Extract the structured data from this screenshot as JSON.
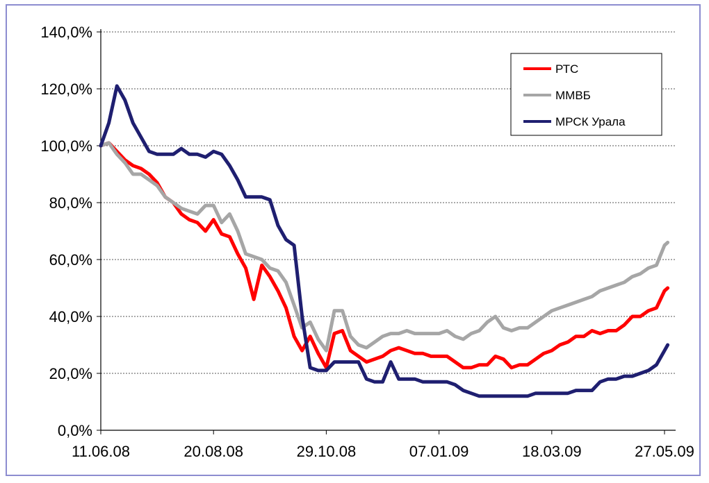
{
  "chart_data": {
    "type": "line",
    "title": "",
    "xlabel": "",
    "ylabel": "",
    "ylim": [
      0,
      140
    ],
    "y_ticks": [
      "0,0%",
      "20,0%",
      "40,0%",
      "60,0%",
      "80,0%",
      "100,0%",
      "120,0%",
      "140,0%"
    ],
    "x_ticks": [
      "11.06.08",
      "20.08.08",
      "29.10.08",
      "07.01.09",
      "18.03.09",
      "27.05.09"
    ],
    "grid": "horizontal dashed",
    "legend_position": "top-right",
    "x": [
      "11.06.08",
      "16.06.08",
      "21.06.08",
      "26.06.08",
      "01.07.08",
      "06.07.08",
      "11.07.08",
      "16.07.08",
      "21.07.08",
      "26.07.08",
      "31.07.08",
      "05.08.08",
      "10.08.08",
      "15.08.08",
      "20.08.08",
      "25.08.08",
      "30.08.08",
      "04.09.08",
      "09.09.08",
      "14.09.08",
      "19.09.08",
      "24.09.08",
      "29.09.08",
      "04.10.08",
      "09.10.08",
      "14.10.08",
      "19.10.08",
      "24.10.08",
      "29.10.08",
      "03.11.08",
      "08.11.08",
      "13.11.08",
      "18.11.08",
      "23.11.08",
      "28.11.08",
      "03.12.08",
      "08.12.08",
      "13.12.08",
      "18.12.08",
      "23.12.08",
      "28.12.08",
      "02.01.09",
      "07.01.09",
      "12.01.09",
      "17.01.09",
      "22.01.09",
      "27.01.09",
      "01.02.09",
      "06.02.09",
      "11.02.09",
      "16.02.09",
      "21.02.09",
      "26.02.09",
      "03.03.09",
      "08.03.09",
      "13.03.09",
      "18.03.09",
      "23.03.09",
      "28.03.09",
      "02.04.09",
      "07.04.09",
      "12.04.09",
      "17.04.09",
      "22.04.09",
      "27.04.09",
      "02.05.09",
      "07.05.09",
      "12.05.09",
      "17.05.09",
      "22.05.09",
      "27.05.09",
      "29.05.09"
    ],
    "series": [
      {
        "name": "РТС",
        "color": "#ff0000",
        "values": [
          100,
          101,
          98,
          95,
          93,
          92,
          90,
          87,
          82,
          80,
          76,
          74,
          73,
          70,
          74,
          69,
          68,
          62,
          57,
          46,
          58,
          54,
          49,
          43,
          33,
          28,
          33,
          27,
          22,
          34,
          35,
          28,
          26,
          24,
          25,
          26,
          28,
          29,
          28,
          27,
          27,
          26,
          26,
          26,
          24,
          22,
          22,
          23,
          23,
          26,
          25,
          22,
          23,
          23,
          25,
          27,
          28,
          30,
          31,
          33,
          33,
          35,
          34,
          35,
          35,
          37,
          40,
          40,
          42,
          43,
          49,
          50
        ]
      },
      {
        "name": "ММВБ",
        "color": "#a6a6a6",
        "values": [
          100,
          101,
          97,
          94,
          90,
          90,
          88,
          86,
          82,
          80,
          78,
          77,
          76,
          79,
          79,
          73,
          76,
          70,
          62,
          61,
          60,
          57,
          56,
          52,
          44,
          36,
          38,
          32,
          28,
          42,
          42,
          33,
          30,
          29,
          31,
          33,
          34,
          34,
          35,
          34,
          34,
          34,
          34,
          35,
          33,
          32,
          34,
          35,
          38,
          40,
          36,
          35,
          36,
          36,
          38,
          40,
          42,
          43,
          44,
          45,
          46,
          47,
          49,
          50,
          51,
          52,
          54,
          55,
          57,
          58,
          65,
          66
        ]
      },
      {
        "name": "МРСК Урала",
        "color": "#1f1f70",
        "values": [
          100,
          108,
          121,
          116,
          108,
          103,
          98,
          97,
          97,
          97,
          99,
          97,
          97,
          96,
          98,
          97,
          93,
          88,
          82,
          82,
          82,
          81,
          72,
          67,
          65,
          40,
          22,
          21,
          21,
          24,
          24,
          24,
          24,
          18,
          17,
          17,
          24,
          18,
          18,
          18,
          17,
          17,
          17,
          17,
          16,
          14,
          13,
          12,
          12,
          12,
          12,
          12,
          12,
          12,
          13,
          13,
          13,
          13,
          13,
          14,
          14,
          14,
          17,
          18,
          18,
          19,
          19,
          20,
          21,
          23,
          28,
          30
        ]
      }
    ]
  }
}
